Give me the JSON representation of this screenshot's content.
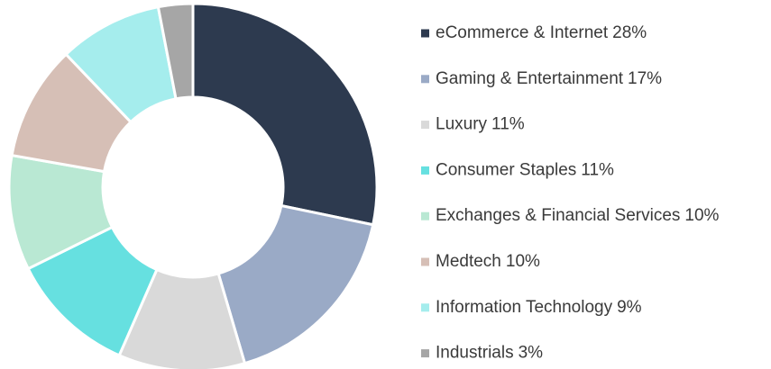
{
  "chart_data": {
    "type": "pie",
    "donut": true,
    "categories": [
      "eCommerce & Internet",
      "Gaming & Entertainment",
      "Luxury",
      "Consumer Staples",
      "Exchanges & Financial Services",
      "Medtech",
      "Information Technology",
      "Industrials"
    ],
    "values": [
      28,
      17,
      11,
      11,
      10,
      10,
      9,
      3
    ],
    "value_labels": [
      "28%",
      "17%",
      "11%",
      "11%",
      "10%",
      "10%",
      "9%",
      "3%"
    ],
    "colors": [
      "#2d3a4f",
      "#9aaac6",
      "#d9d9d9",
      "#66e0e0",
      "#b9e8d3",
      "#d6bfb6",
      "#a5eded",
      "#a6a6a6"
    ],
    "legend": "right"
  }
}
